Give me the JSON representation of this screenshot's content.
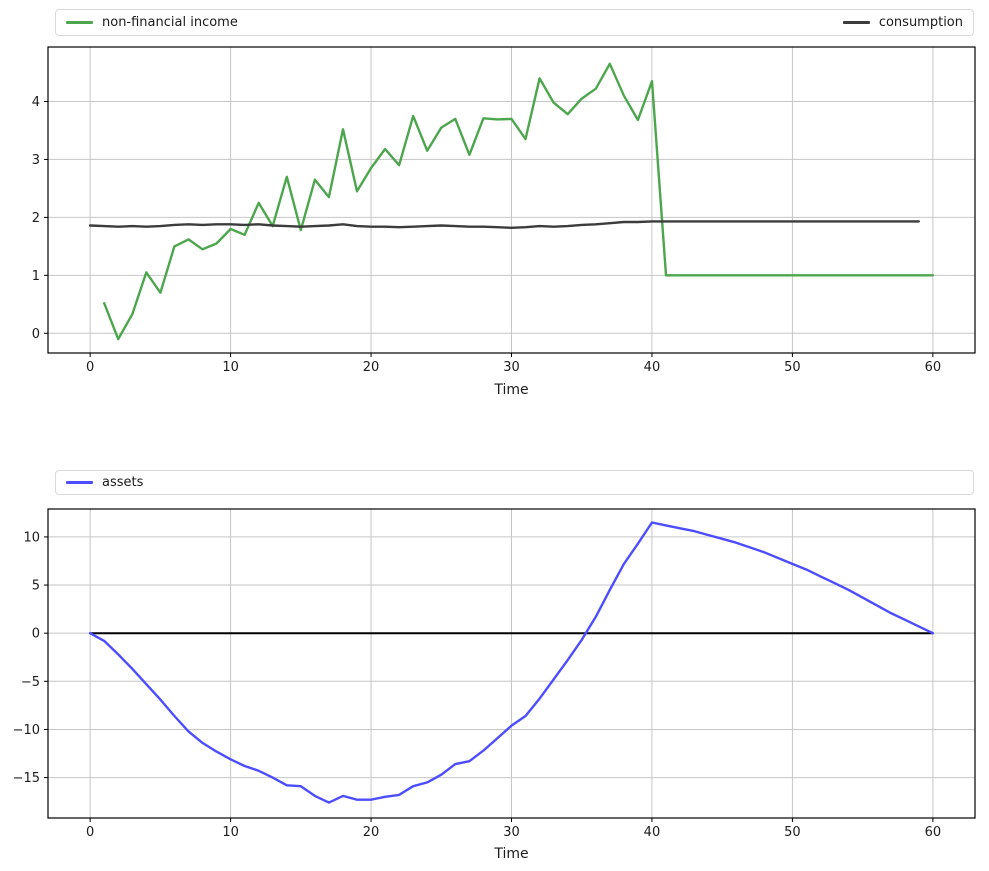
{
  "figure": {
    "background": "#ffffff",
    "grid_color": "#c6c6c6",
    "spine_color": "#000000",
    "tick_text_color": "#1c1c1c",
    "legend_border_color": "#d9d9d9"
  },
  "chart_data": [
    {
      "type": "line",
      "title": "",
      "xlabel": "Time",
      "ylabel": "",
      "grid": true,
      "legend_position": "top-expanded",
      "xlim": [
        -3,
        63
      ],
      "ylim": [
        -0.34,
        4.94
      ],
      "x_ticks": [
        {
          "v": 0,
          "label": "0"
        },
        {
          "v": 10,
          "label": "10"
        },
        {
          "v": 20,
          "label": "20"
        },
        {
          "v": 30,
          "label": "30"
        },
        {
          "v": 40,
          "label": "40"
        },
        {
          "v": 50,
          "label": "50"
        },
        {
          "v": 60,
          "label": "60"
        }
      ],
      "y_ticks": [
        {
          "v": 0,
          "label": "0"
        },
        {
          "v": 1,
          "label": "1"
        },
        {
          "v": 2,
          "label": "2"
        },
        {
          "v": 3,
          "label": "3"
        },
        {
          "v": 4,
          "label": "4"
        }
      ],
      "legend": [
        {
          "label": "non-financial income",
          "color": "#4da64d"
        },
        {
          "label": "consumption",
          "color": "#3c3c3c"
        }
      ],
      "series": [
        {
          "name": "non-financial-income",
          "color": "#4da64d",
          "width": 2.4,
          "x0": 1,
          "values": [
            0.52,
            -0.1,
            0.33,
            1.05,
            0.7,
            1.5,
            1.62,
            1.45,
            1.55,
            1.8,
            1.7,
            2.25,
            1.85,
            2.7,
            1.78,
            2.65,
            2.35,
            3.52,
            2.45,
            2.85,
            3.18,
            2.9,
            3.75,
            3.15,
            3.55,
            3.7,
            3.08,
            3.71,
            3.69,
            3.7,
            3.35,
            4.4,
            3.98,
            3.78,
            4.05,
            4.22,
            4.65,
            4.1,
            3.68,
            4.35,
            1.0,
            1.0,
            1.0,
            1.0,
            1.0,
            1.0,
            1.0,
            1.0,
            1.0,
            1.0,
            1.0,
            1.0,
            1.0,
            1.0,
            1.0,
            1.0,
            1.0,
            1.0,
            1.0,
            1.0
          ]
        },
        {
          "name": "consumption",
          "color": "#3c3c3c",
          "width": 2.4,
          "x0": 0,
          "values": [
            1.86,
            1.85,
            1.84,
            1.85,
            1.84,
            1.85,
            1.87,
            1.88,
            1.87,
            1.88,
            1.88,
            1.87,
            1.88,
            1.86,
            1.85,
            1.84,
            1.85,
            1.86,
            1.88,
            1.85,
            1.84,
            1.84,
            1.83,
            1.84,
            1.85,
            1.86,
            1.85,
            1.84,
            1.84,
            1.83,
            1.82,
            1.83,
            1.85,
            1.84,
            1.85,
            1.87,
            1.88,
            1.9,
            1.92,
            1.92,
            1.93,
            1.93,
            1.93,
            1.93,
            1.93,
            1.93,
            1.93,
            1.93,
            1.93,
            1.93,
            1.93,
            1.93,
            1.93,
            1.93,
            1.93,
            1.93,
            1.93,
            1.93,
            1.93,
            1.93
          ]
        }
      ]
    },
    {
      "type": "line",
      "title": "",
      "xlabel": "Time",
      "ylabel": "",
      "grid": true,
      "legend_position": "top-expanded",
      "xlim": [
        -3,
        63
      ],
      "ylim": [
        -19.2,
        12.9
      ],
      "x_ticks": [
        {
          "v": 0,
          "label": "0"
        },
        {
          "v": 10,
          "label": "10"
        },
        {
          "v": 20,
          "label": "20"
        },
        {
          "v": 30,
          "label": "30"
        },
        {
          "v": 40,
          "label": "40"
        },
        {
          "v": 50,
          "label": "50"
        },
        {
          "v": 60,
          "label": "60"
        }
      ],
      "y_ticks": [
        {
          "v": -15,
          "label": "−15"
        },
        {
          "v": -10,
          "label": "−10"
        },
        {
          "v": -5,
          "label": "−5"
        },
        {
          "v": 0,
          "label": "0"
        },
        {
          "v": 5,
          "label": "5"
        },
        {
          "v": 10,
          "label": "10"
        }
      ],
      "legend": [
        {
          "label": "assets",
          "color": "#4d4dff"
        }
      ],
      "series": [
        {
          "name": "zero-line",
          "color": "#000000",
          "width": 2.0,
          "x": [
            0,
            60
          ],
          "y": [
            0,
            0
          ]
        },
        {
          "name": "assets",
          "color": "#4d4dff",
          "width": 2.4,
          "x0": 0,
          "values": [
            0.0,
            -0.8,
            -2.2,
            -3.7,
            -5.3,
            -6.9,
            -8.6,
            -10.2,
            -11.4,
            -12.3,
            -13.1,
            -13.8,
            -14.3,
            -15.0,
            -15.8,
            -15.9,
            -16.9,
            -17.6,
            -16.9,
            -17.3,
            -17.3,
            -17.0,
            -16.8,
            -15.9,
            -15.5,
            -14.7,
            -13.6,
            -13.3,
            -12.2,
            -10.9,
            -9.6,
            -8.6,
            -6.8,
            -4.8,
            -2.8,
            -0.7,
            1.7,
            4.5,
            7.2,
            9.3,
            11.5,
            11.2,
            10.9,
            10.6,
            10.2,
            9.8,
            9.4,
            8.9,
            8.4,
            7.8,
            7.2,
            6.6,
            5.9,
            5.2,
            4.5,
            3.7,
            2.9,
            2.1,
            1.4,
            0.7,
            0.0
          ]
        }
      ]
    }
  ]
}
